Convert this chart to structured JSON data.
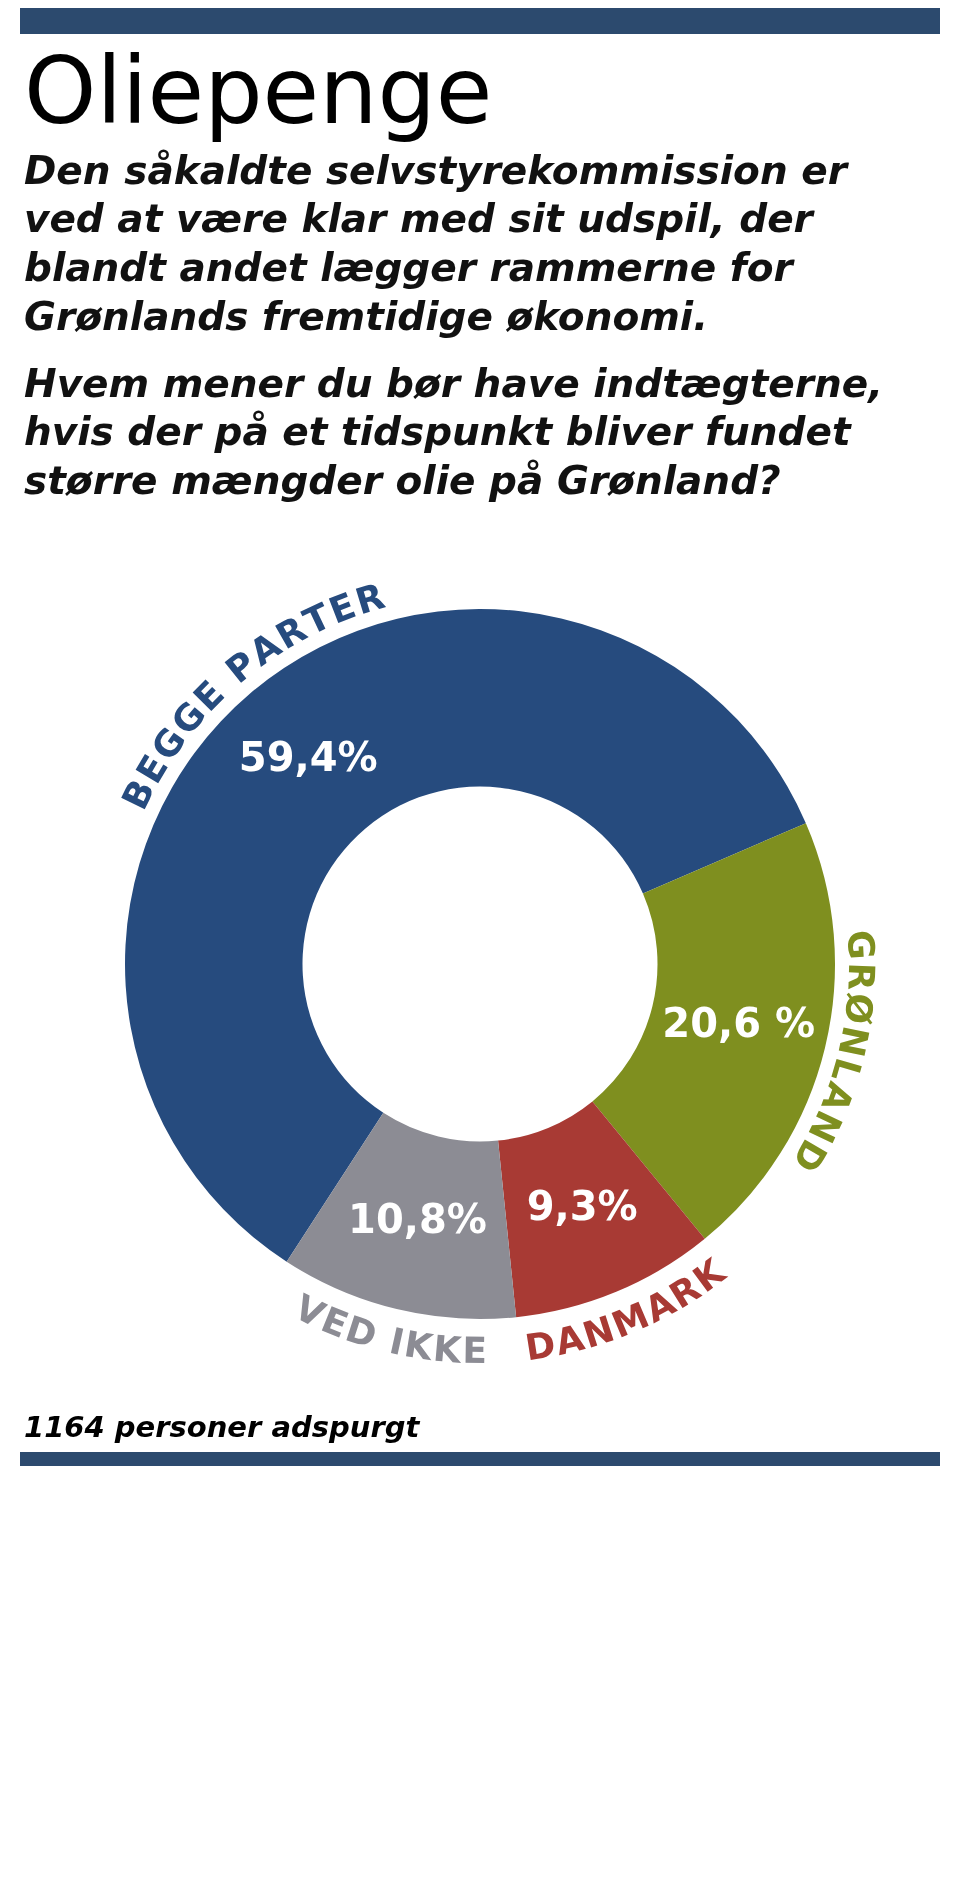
{
  "chart_data": {
    "type": "donut",
    "title": "Oliepenge",
    "subtitle": "Den såkaldte selvstyrekommission er ved at være klar med sit udspil, der blandt andet lægger rammerne for Grønlands fremtidige økonomi.",
    "annotations": [
      "Hvem mener du bør have indtægterne, hvis der på et tidspunkt bliver fundet større mængder olie på Grønland?",
      "1164 personer adspurgt"
    ],
    "categories": [
      "BEGGE PARTER",
      "GRØNLAND",
      "DANMARK",
      "VED IKKE"
    ],
    "values": [
      59.4,
      20.6,
      9.3,
      10.8
    ],
    "colors": [
      "#264b7e",
      "#7f8f1f",
      "#a83a34",
      "#8c8c94"
    ],
    "value_labels": [
      "59,4%",
      "20,6 %",
      "9,3%",
      "10,8%"
    ],
    "legend": false
  }
}
